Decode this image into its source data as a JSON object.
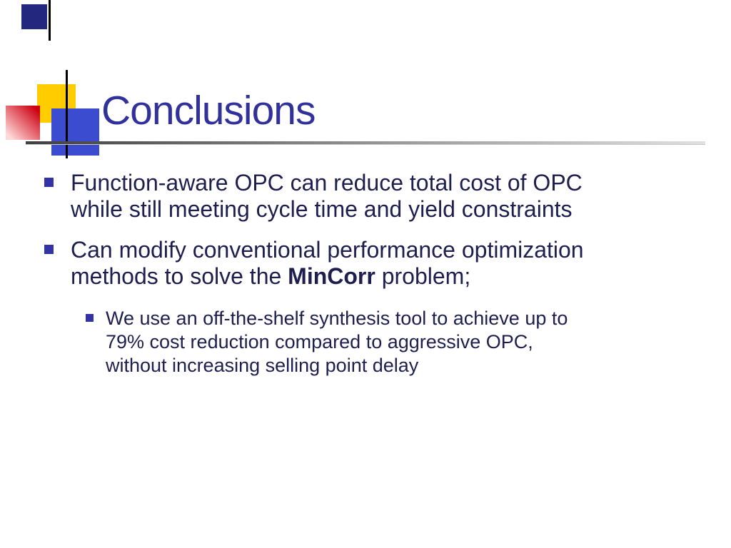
{
  "slide": {
    "title": "Conclusions"
  },
  "bullets": {
    "b1": {
      "text": "Function-aware OPC can reduce total cost of OPC\nwhile still meeting cycle time and yield constraints"
    },
    "b2": {
      "pre": "Can modify conventional performance optimization\nmethods to solve the ",
      "bold": "MinCorr",
      "post": " problem;"
    },
    "sub1": {
      "text": "We use an off-the-shelf synthesis tool to achieve up to\n79% cost reduction compared to aggressive OPC,\nwithout increasing selling point delay"
    }
  },
  "icons": {
    "bullet_level1": "square-bullet-icon",
    "bullet_level2": "square-bullet-icon"
  },
  "colors": {
    "titleColor": "#31319c",
    "bodyColor": "#1e1e4f",
    "bulletColor": "#3333a6",
    "yellowSquare": "#ffcc00",
    "blueSquare": "#3b4cd0",
    "navySquare": "#23277d",
    "redSquare": "#cc0011",
    "ruleDark": "#404040",
    "ruleLight": "#e0e0e0"
  }
}
